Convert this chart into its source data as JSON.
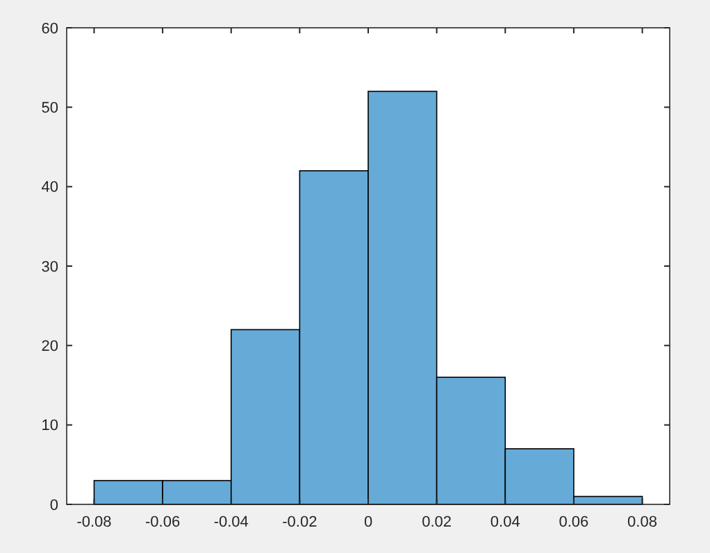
{
  "chart_data": {
    "type": "histogram",
    "bins": [
      -0.08,
      -0.06,
      -0.04,
      -0.02,
      0,
      0.02,
      0.04,
      0.06,
      0.08
    ],
    "values": [
      3,
      3,
      22,
      42,
      52,
      16,
      7,
      1
    ],
    "color": "#66aad7",
    "xlim": [
      -0.088,
      0.088
    ],
    "xticks": [
      -0.08,
      -0.06,
      -0.04,
      -0.02,
      0,
      0.02,
      0.04,
      0.06,
      0.08
    ],
    "ylim": [
      0,
      60
    ],
    "yticks": [
      0,
      10,
      20,
      30,
      40,
      50,
      60
    ],
    "grid": false
  }
}
